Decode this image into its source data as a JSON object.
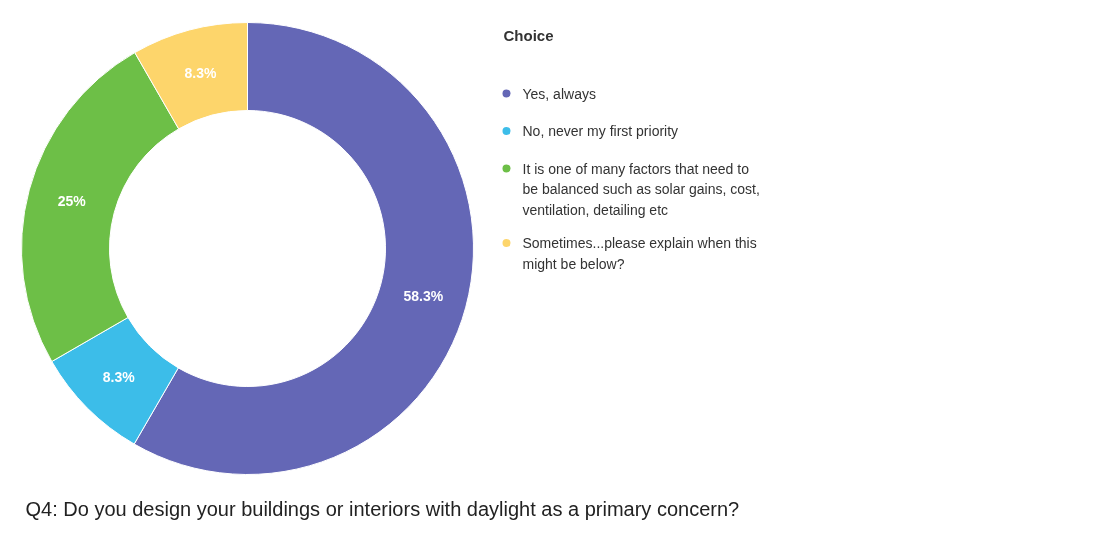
{
  "chart_data": {
    "type": "donut",
    "title": "Q4: Do you design your buildings or interiors with daylight as a primary concern?",
    "legend_title": "Choice",
    "legend": "right",
    "categories": [
      "Yes, always",
      "No, never my first priority",
      "It is one of many factors that need to be balanced such as solar gains, cost, ventilation, detailing etc",
      "Sometimes...please explain when this might be below?"
    ],
    "values": [
      58.3,
      8.3,
      25,
      8.3
    ],
    "colors": [
      "#6467b6",
      "#3cbde9",
      "#6dbf47",
      "#fdd56b"
    ],
    "value_labels": [
      "58.3%",
      "8.3%",
      "25%",
      "8.3%"
    ]
  }
}
